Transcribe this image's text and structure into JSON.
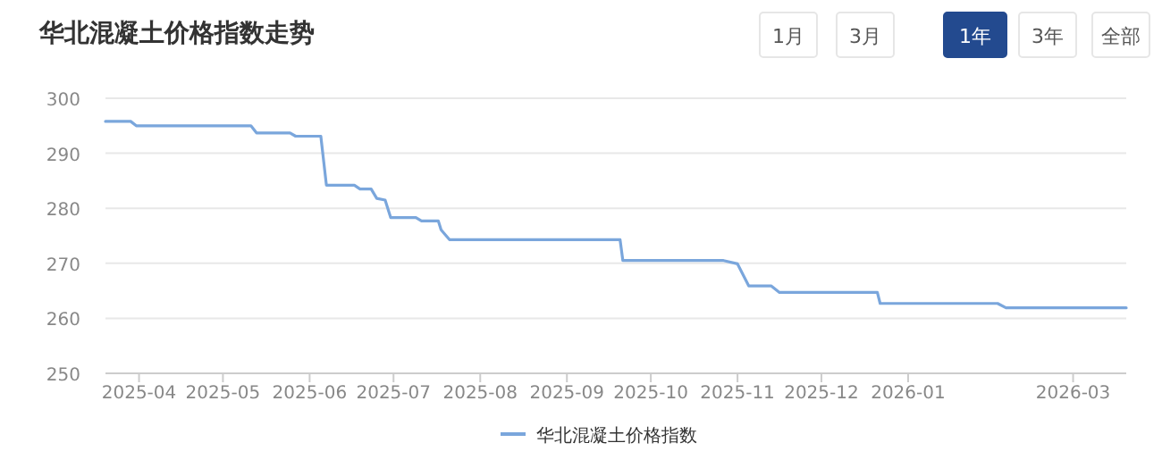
{
  "chart_data": {
    "type": "line",
    "title": "华北混凝土价格指数走势",
    "annotations": [
      "1月",
      "3月",
      "1年",
      "3年",
      "全部"
    ],
    "series": [
      {
        "name": "华北混凝土价格指数",
        "color": "#7aa6dc",
        "x": [
          "2025-03-20",
          "2025-03-29",
          "2025-03-31",
          "2025-05-11",
          "2025-05-13",
          "2025-05-25",
          "2025-05-27",
          "2025-06-05",
          "2025-06-07",
          "2025-06-17",
          "2025-06-19",
          "2025-06-23",
          "2025-06-25",
          "2025-06-28",
          "2025-06-30",
          "2025-07-09",
          "2025-07-11",
          "2025-07-17",
          "2025-07-18",
          "2025-07-19",
          "2025-07-21",
          "2025-09-20",
          "2025-09-21",
          "2025-10-27",
          "2025-11-01",
          "2025-11-05",
          "2025-11-13",
          "2025-11-16",
          "2025-12-21",
          "2025-12-22",
          "2026-02-02",
          "2026-02-05",
          "2026-03-20"
        ],
        "values": [
          295.8,
          295.8,
          295.0,
          295.0,
          293.7,
          293.7,
          293.1,
          293.1,
          284.2,
          284.2,
          283.5,
          283.5,
          281.8,
          281.5,
          278.3,
          278.3,
          277.7,
          277.7,
          276.1,
          275.5,
          274.3,
          274.3,
          270.5,
          270.5,
          269.9,
          265.9,
          265.9,
          264.7,
          264.7,
          262.7,
          262.7,
          261.9,
          261.9
        ]
      }
    ],
    "xlim": [
      "2025-03-20",
      "2026-03-20"
    ],
    "xticks": [
      {
        "value": "2025-04",
        "label": "2025-04"
      },
      {
        "value": "2025-05",
        "label": "2025-05"
      },
      {
        "value": "2025-06",
        "label": "2025-06"
      },
      {
        "value": "2025-07",
        "label": "2025-07"
      },
      {
        "value": "2025-08",
        "label": "2025-08"
      },
      {
        "value": "2025-09",
        "label": "2025-09"
      },
      {
        "value": "2025-10",
        "label": "2025-10"
      },
      {
        "value": "2025-11",
        "label": "2025-11"
      },
      {
        "value": "2025-12",
        "label": "2025-12"
      },
      {
        "value": "2026-01",
        "label": "2026-01"
      },
      {
        "value": "2026-03",
        "label": "2026-03"
      }
    ],
    "ylim": [
      250,
      300
    ],
    "yticks": [
      250,
      260,
      270,
      280,
      290,
      300
    ],
    "grid": "y",
    "legend": "bottom",
    "marker": "none",
    "line_style": "solid"
  }
}
